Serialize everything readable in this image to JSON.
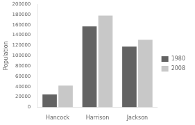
{
  "chart_data": {
    "type": "bar",
    "categories": [
      "Hancock",
      "Harrison",
      "Jackson"
    ],
    "series": [
      {
        "name": "1980",
        "color": "#636363",
        "values": [
          25000,
          157000,
          118000
        ]
      },
      {
        "name": "2008",
        "color": "#c8c8c8",
        "values": [
          42000,
          178000,
          131000
        ]
      }
    ],
    "ylabel": "Population",
    "ylim": [
      0,
      200000
    ],
    "yticks": [
      0,
      20000,
      40000,
      60000,
      80000,
      100000,
      120000,
      140000,
      160000,
      180000,
      200000
    ],
    "legend": "right",
    "grid": false
  }
}
